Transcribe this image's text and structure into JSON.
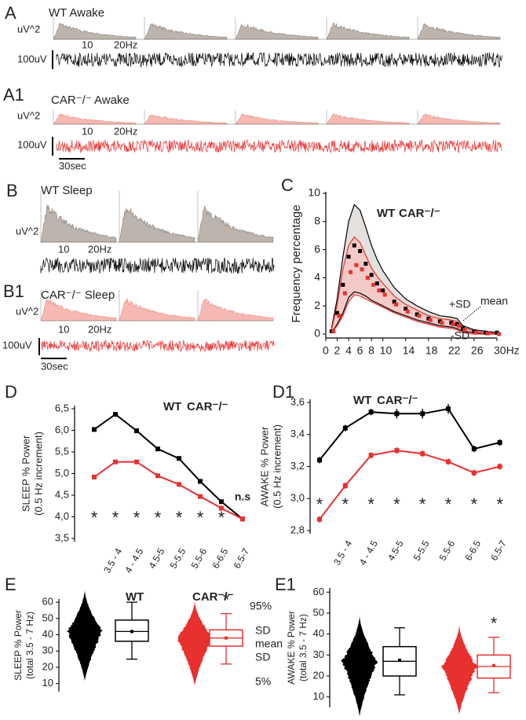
{
  "panels": {
    "A": {
      "label": "A",
      "title": "WT Awake",
      "power_unit": "uV^2",
      "freq_ticks": [
        "10",
        "20Hz"
      ],
      "scale": "100uV"
    },
    "A1": {
      "label": "A1",
      "title": "CAR⁻/⁻ Awake",
      "power_unit": "uV^2",
      "freq_ticks": [
        "10",
        "20Hz"
      ],
      "scale": "100uV",
      "time_scale": "30sec"
    },
    "B": {
      "label": "B",
      "title": "WT Sleep",
      "power_unit": "uV^2",
      "freq_ticks": [
        "10",
        "20Hz"
      ]
    },
    "B1": {
      "label": "B1",
      "title": "CAR⁻/⁻ Sleep",
      "power_unit": "uV^2",
      "freq_ticks": [
        "10",
        "20Hz"
      ],
      "scale": "100uV",
      "time_scale": "30sec"
    }
  },
  "chart_data": [
    {
      "panel": "C",
      "type": "band-line",
      "ylabel": "Frequency percentage",
      "x": [
        1,
        2,
        3,
        4,
        5,
        6,
        7,
        8,
        9,
        10,
        12,
        14,
        16,
        18,
        20,
        22,
        23,
        24,
        26,
        28,
        30
      ],
      "xlim": [
        0,
        30
      ],
      "xticks": [
        0,
        2,
        4,
        6,
        8,
        10,
        14,
        18,
        22,
        26,
        {
          "value": 30,
          "label": "30Hz"
        }
      ],
      "ylim": [
        0,
        10
      ],
      "yticks": [
        0,
        2,
        4,
        6,
        8,
        10
      ],
      "series": [
        {
          "name": "WT",
          "color": "#000000",
          "band_color": "#dcd8d4",
          "values": [
            0.2,
            1.5,
            3.5,
            5.5,
            6.3,
            5.9,
            5.0,
            4.2,
            3.6,
            3.1,
            2.3,
            1.8,
            1.4,
            1.1,
            0.9,
            0.8,
            0.7,
            0.4,
            0.2,
            0.1,
            0.1
          ],
          "upper": [
            0.4,
            2.5,
            5.5,
            8.0,
            9.2,
            8.8,
            7.6,
            6.3,
            5.3,
            4.5,
            3.3,
            2.5,
            2.0,
            1.6,
            1.3,
            1.2,
            1.1,
            0.6,
            0.3,
            0.2,
            0.1
          ],
          "lower": [
            0.1,
            0.7,
            1.5,
            2.6,
            3.0,
            2.9,
            2.7,
            2.4,
            2.2,
            2.0,
            1.6,
            1.3,
            1.0,
            0.8,
            0.6,
            0.5,
            0.4,
            0.2,
            0.1,
            0.0,
            0.0
          ]
        },
        {
          "name": "CAR⁻/⁻",
          "color": "#e8302f",
          "band_color": "#f7c4c0",
          "values": [
            0.2,
            1.3,
            2.9,
            4.4,
            4.9,
            4.6,
            4.0,
            3.5,
            3.1,
            2.8,
            2.1,
            1.6,
            1.3,
            1.0,
            0.8,
            0.7,
            0.6,
            0.3,
            0.1,
            0.05,
            0.0
          ],
          "upper": [
            0.3,
            2.1,
            4.6,
            6.3,
            6.9,
            6.5,
            5.6,
            4.7,
            4.1,
            3.6,
            2.7,
            2.1,
            1.7,
            1.3,
            1.1,
            1.0,
            0.9,
            0.5,
            0.2,
            0.1,
            0.05
          ],
          "lower": [
            0.1,
            0.6,
            1.3,
            2.3,
            2.8,
            2.7,
            2.5,
            2.3,
            2.1,
            1.9,
            1.5,
            1.2,
            0.9,
            0.7,
            0.5,
            0.4,
            0.3,
            0.1,
            0.0,
            0.0,
            0.0
          ]
        }
      ],
      "annotations": [
        "+SD",
        "mean",
        "-SD"
      ]
    },
    {
      "panel": "D",
      "type": "line",
      "ylabel": [
        "SLEEP % Power",
        "(0.5 Hz increment)"
      ],
      "categories": [
        null,
        "3.5 - 4",
        "4 - 4.5",
        "4.5-5",
        "5-5.5",
        "5.5-6",
        "6-6.5",
        "6.5-7"
      ],
      "ylim": [
        3.5,
        6.5
      ],
      "yticks": [
        {
          "value": 3.5,
          "label": "3,5"
        },
        {
          "value": 4,
          "label": "4,0"
        },
        {
          "value": 4.5,
          "label": "4,5"
        },
        {
          "value": 5,
          "label": "5,0"
        },
        {
          "value": 5.5,
          "label": "5,5"
        },
        {
          "value": 6,
          "label": "6,0"
        },
        {
          "value": 6.5,
          "label": "6,5"
        }
      ],
      "series": [
        {
          "name": "WT",
          "color": "#000000",
          "values": [
            6.02,
            6.37,
            5.99,
            5.57,
            5.35,
            4.82,
            4.35,
            3.95
          ],
          "error": [
            0.05,
            0.05,
            0.04,
            0.04,
            0.04,
            0.04,
            0.03,
            0.03
          ]
        },
        {
          "name": "CAR⁻/⁻",
          "color": "#e8302f",
          "values": [
            4.92,
            5.27,
            5.27,
            4.95,
            4.75,
            4.47,
            4.2,
            3.95
          ],
          "error": [
            0.04,
            0.04,
            0.04,
            0.03,
            0.03,
            0.03,
            0.03,
            0.03
          ]
        }
      ],
      "annotations": [
        "*",
        "*",
        "*",
        "*",
        "*",
        "*",
        "*",
        "n.s"
      ]
    },
    {
      "panel": "D1",
      "type": "line",
      "ylabel": [
        "AWAKE % Power",
        "(0.5 Hz increment)"
      ],
      "categories": [
        null,
        "3.5 - 4",
        "4 - 4.5",
        "4.5-5",
        "5-5.5",
        "5.5-6",
        "6-6.5",
        "6.5-7"
      ],
      "ylim": [
        2.8,
        3.6
      ],
      "yticks": [
        {
          "value": 2.8,
          "label": "2,8"
        },
        {
          "value": 3,
          "label": "3,0"
        },
        {
          "value": 3.2,
          "label": "3,2"
        },
        {
          "value": 3.4,
          "label": "3,4"
        },
        {
          "value": 3.6,
          "label": "3,6"
        }
      ],
      "series": [
        {
          "name": "WT",
          "color": "#000000",
          "values": [
            3.24,
            3.44,
            3.54,
            3.53,
            3.53,
            3.56,
            3.31,
            3.35
          ],
          "error": [
            0.02,
            0.02,
            0.02,
            0.03,
            0.03,
            0.03,
            0.02,
            0.02
          ]
        },
        {
          "name": "CAR⁻/⁻",
          "color": "#e8302f",
          "values": [
            2.87,
            3.08,
            3.27,
            3.3,
            3.28,
            3.23,
            3.16,
            3.2
          ],
          "error": [
            0.02,
            0.02,
            0.02,
            0.02,
            0.02,
            0.02,
            0.02,
            0.02
          ]
        }
      ],
      "annotations": [
        "*",
        "*",
        "*",
        "*",
        "*",
        "*",
        "*",
        "*"
      ]
    },
    {
      "panel": "E",
      "type": "box",
      "ylabel": [
        "SLEEP % Power",
        "(total 3.5 - 7 Hz)"
      ],
      "ylim": [
        5,
        62
      ],
      "yticks": [
        10,
        20,
        30,
        40,
        50,
        60
      ],
      "series": [
        {
          "name": "WT",
          "color": "#000000",
          "p5": 25,
          "sd_low": 36,
          "median": 42,
          "mean": 42,
          "sd_high": 49,
          "p95": 60
        },
        {
          "name": "CAR⁻/⁻",
          "color": "#e8302f",
          "p5": 22,
          "sd_low": 33,
          "median": 38,
          "mean": 38,
          "sd_high": 43,
          "p95": 53,
          "significance": "*"
        }
      ],
      "legend_labels": [
        "95%",
        "SD",
        "mean",
        "SD",
        "5%"
      ]
    },
    {
      "panel": "E1",
      "type": "box",
      "ylabel": [
        "AWAKE % Power",
        "(total 3.5 - 7 Hz)"
      ],
      "ylim": [
        5,
        62
      ],
      "yticks": [
        10,
        20,
        30,
        40,
        50,
        60
      ],
      "series": [
        {
          "name": "WT",
          "color": "#000000",
          "p5": 11,
          "sd_low": 20,
          "median": 27,
          "mean": 27.5,
          "sd_high": 34,
          "p95": 43
        },
        {
          "name": "CAR⁻/⁻",
          "color": "#e8302f",
          "p5": 12,
          "sd_low": 19,
          "median": 24.5,
          "mean": 25,
          "sd_high": 30,
          "p95": 38.5,
          "significance": "*"
        }
      ]
    }
  ]
}
